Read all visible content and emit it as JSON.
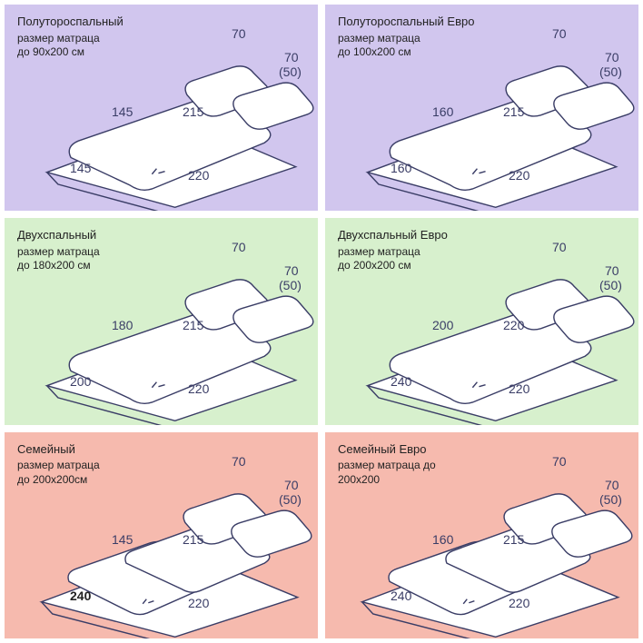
{
  "colors": {
    "row1": "#d1c6ee",
    "row2": "#d7f0cd",
    "row3": "#f6baae",
    "stroke": "#3a3d66",
    "fill": "#ffffff",
    "text": "#222222"
  },
  "font": {
    "title_size": 13,
    "sub_size": 12,
    "dim_size": 14
  },
  "cells": [
    {
      "id": "c1",
      "bg": "row1",
      "title": "Полутороспальный",
      "sub": "размер матраца\nдо  90x200 см",
      "style": "single",
      "dims": {
        "pillow_w": "70",
        "pillow_h": "70",
        "pillow_h2": "(50)",
        "duvet_w": "145",
        "duvet_l": "215",
        "sheet_w": "145",
        "sheet_l": "220"
      },
      "sheet_bold": false
    },
    {
      "id": "c2",
      "bg": "row1",
      "title": "Полутороспальный  Евро",
      "sub": "размер матраца\nдо 100x200 см",
      "style": "single",
      "dims": {
        "pillow_w": "70",
        "pillow_h": "70",
        "pillow_h2": "(50)",
        "duvet_w": "160",
        "duvet_l": "215",
        "sheet_w": "160",
        "sheet_l": "220"
      },
      "sheet_bold": false
    },
    {
      "id": "c3",
      "bg": "row2",
      "title": "Двухспальный",
      "sub": "размер матраца\nдо 180x200 см",
      "style": "single",
      "dims": {
        "pillow_w": "70",
        "pillow_h": "70",
        "pillow_h2": "(50)",
        "duvet_w": "180",
        "duvet_l": "215",
        "sheet_w": "200",
        "sheet_l": "220"
      },
      "sheet_bold": false
    },
    {
      "id": "c4",
      "bg": "row2",
      "title": "Двухспальный Евро",
      "sub": "размер матраца\nдо  200x200 см",
      "style": "single",
      "dims": {
        "pillow_w": "70",
        "pillow_h": "70",
        "pillow_h2": "(50)",
        "duvet_w": "200",
        "duvet_l": "220",
        "sheet_w": "240",
        "sheet_l": "220"
      },
      "sheet_bold": false
    },
    {
      "id": "c5",
      "bg": "row3",
      "title": "Семейный",
      "sub": "размер матраца\nдо 200x200см",
      "style": "double",
      "dims": {
        "pillow_w": "70",
        "pillow_h": "70",
        "pillow_h2": "(50)",
        "duvet_w": "145",
        "duvet_l": "215",
        "sheet_w": "240",
        "sheet_l": "220"
      },
      "sheet_bold": true
    },
    {
      "id": "c6",
      "bg": "row3",
      "title": "Семейный Евро",
      "sub": "размер матраца до\n200x200",
      "style": "double",
      "dims": {
        "pillow_w": "70",
        "pillow_h": "70",
        "pillow_h2": "(50)",
        "duvet_w": "160",
        "duvet_l": "215",
        "sheet_w": "240",
        "sheet_l": "220"
      },
      "sheet_bold": false
    }
  ]
}
